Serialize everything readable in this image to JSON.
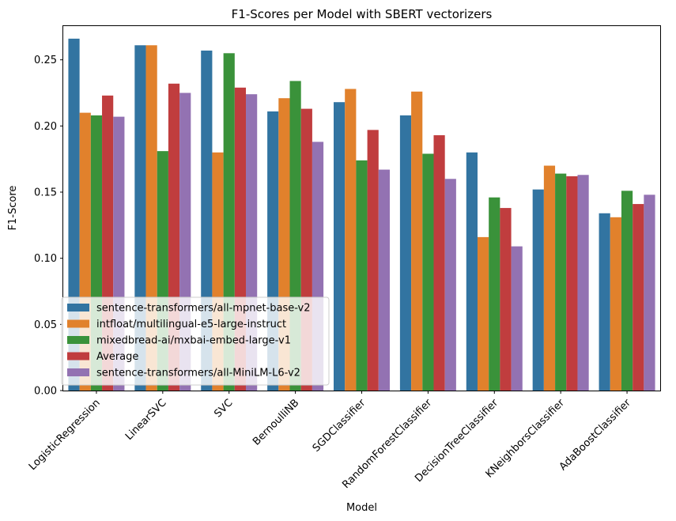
{
  "chart_data": {
    "type": "bar",
    "title": "F1-Scores per Model with SBERT vectorizers",
    "xlabel": "Model",
    "ylabel": "F1-Score",
    "ylim": [
      0,
      0.2755
    ],
    "yticks": [
      "0.00",
      "0.05",
      "0.10",
      "0.15",
      "0.20",
      "0.25"
    ],
    "grid": false,
    "legend_position": "lower-left",
    "categories": [
      "LogisticRegression",
      "LinearSVC",
      "SVC",
      "BernoulliNB",
      "SGDClassifier",
      "RandomForestClassifier",
      "DecisionTreeClassifier",
      "KNeighborsClassifier",
      "AdaBoostClassifier"
    ],
    "series": [
      {
        "name": "sentence-transformers/all-mpnet-base-v2",
        "color": "#3274a1",
        "values": [
          0.266,
          0.261,
          0.257,
          0.211,
          0.218,
          0.208,
          0.18,
          0.152,
          0.134
        ]
      },
      {
        "name": "intfloat/multilingual-e5-large-instruct",
        "color": "#e1812c",
        "values": [
          0.21,
          0.261,
          0.18,
          0.221,
          0.228,
          0.226,
          0.116,
          0.17,
          0.131
        ]
      },
      {
        "name": "mixedbread-ai/mxbai-embed-large-v1",
        "color": "#3a923a",
        "values": [
          0.208,
          0.181,
          0.255,
          0.234,
          0.174,
          0.179,
          0.146,
          0.164,
          0.151
        ]
      },
      {
        "name": "Average",
        "color": "#c03d3e",
        "values": [
          0.223,
          0.232,
          0.229,
          0.213,
          0.197,
          0.193,
          0.138,
          0.162,
          0.141
        ]
      },
      {
        "name": "sentence-transformers/all-MiniLM-L6-v2",
        "color": "#9372b2",
        "values": [
          0.207,
          0.225,
          0.224,
          0.188,
          0.167,
          0.16,
          0.109,
          0.163,
          0.148
        ]
      }
    ]
  }
}
